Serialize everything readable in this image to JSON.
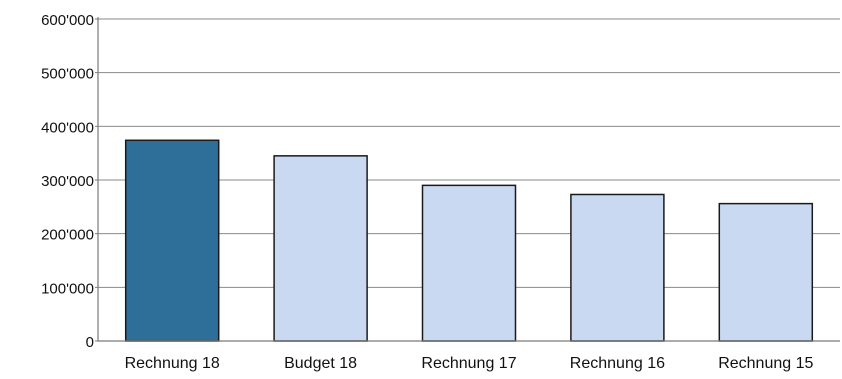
{
  "chart_data": {
    "type": "bar",
    "categories": [
      "Rechnung 18",
      "Budget 18",
      "Rechnung 17",
      "Rechnung 16",
      "Rechnung 15"
    ],
    "values": [
      374000,
      345000,
      290000,
      273000,
      256000
    ],
    "ylim": [
      0,
      600000
    ],
    "yticks": [
      0,
      100000,
      200000,
      300000,
      400000,
      500000,
      600000
    ],
    "ytick_labels": [
      "0",
      "100'000",
      "200'000",
      "300'000",
      "400'000",
      "500'000",
      "600'000"
    ],
    "grid": true,
    "legend": "none",
    "colors": {
      "highlight": "#2e6f9a",
      "bar": "#c9d9f2",
      "edge": "#1a1a1a",
      "grid": "#8a8a8a",
      "axis": "#7a7a7a"
    },
    "highlight_index": 0
  }
}
